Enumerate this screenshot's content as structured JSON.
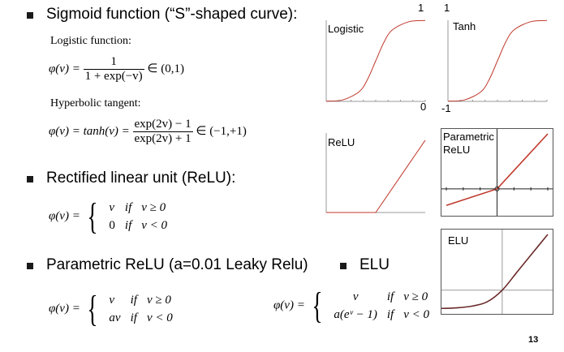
{
  "slide": {
    "page_number": "13",
    "sigmoid": {
      "heading": "Sigmoid function (“S”-shaped curve):",
      "logistic_label": "Logistic function:",
      "tanh_label": "Hyperbolic tangent:",
      "logistic_eq": {
        "lhs": "φ(v) =",
        "num": "1",
        "den": "1 + exp(−v)",
        "range": "∈ (0,1)"
      },
      "tanh_eq": {
        "lhs": "φ(v) = tanh(v) =",
        "num": "exp(2v) − 1",
        "den": "exp(2v) + 1",
        "range": "∈ (−1,+1)"
      }
    },
    "relu": {
      "heading": "Rectified linear unit (ReLU):",
      "eq_lhs": "φ(v) =",
      "cases": [
        {
          "expr": "v",
          "cond_if": "if",
          "cond": "v ≥ 0"
        },
        {
          "expr": "0",
          "cond_if": "if",
          "cond": "v < 0"
        }
      ]
    },
    "prelu": {
      "heading": "Parametric ReLU (a=0.01 Leaky Relu)",
      "eq_lhs": "φ(v) =",
      "cases": [
        {
          "expr": "v",
          "cond_if": "if",
          "cond": "v ≥ 0"
        },
        {
          "expr": "av",
          "cond_if": "if",
          "cond": "v < 0"
        }
      ]
    },
    "elu": {
      "heading": "ELU",
      "eq_lhs": "φ(v) =",
      "cases": [
        {
          "expr": "v",
          "cond_if": "if",
          "cond": "v ≥ 0"
        },
        {
          "expr": "a(eᵛ − 1)",
          "cond_if": "if",
          "cond": "v < 0"
        }
      ]
    }
  },
  "chart_data": [
    {
      "type": "line",
      "title": "Logistic",
      "tick_labels": [
        "1",
        "0"
      ],
      "x": [
        -6,
        -4,
        -2,
        -1,
        0,
        1,
        2,
        4,
        6
      ],
      "series": [
        {
          "values": [
            0.0025,
            0.018,
            0.12,
            0.27,
            0.5,
            0.73,
            0.88,
            0.982,
            0.9975
          ]
        }
      ],
      "ylim": [
        0,
        1
      ]
    },
    {
      "type": "line",
      "title": "Tanh",
      "tick_labels": [
        "1",
        "-1"
      ],
      "x": [
        -3,
        -2,
        -1,
        -0.5,
        0,
        0.5,
        1,
        2,
        3
      ],
      "series": [
        {
          "values": [
            -0.995,
            -0.964,
            -0.762,
            -0.462,
            0,
            0.462,
            0.762,
            0.964,
            0.995
          ]
        }
      ],
      "ylim": [
        -1,
        1
      ]
    },
    {
      "type": "line",
      "title": "ReLU",
      "x": [
        -4,
        0,
        4
      ],
      "series": [
        {
          "values": [
            0,
            0,
            4
          ]
        }
      ]
    },
    {
      "type": "line",
      "title": "Parametric\nReLU",
      "x": [
        -6,
        0,
        6
      ],
      "series": [
        {
          "values": [
            -1.8,
            0,
            6
          ]
        }
      ]
    },
    {
      "type": "line",
      "title": "ELU",
      "x": [
        -4,
        -3,
        -2,
        -1,
        0,
        1,
        2,
        3
      ],
      "series": [
        {
          "values": [
            -0.98,
            -0.95,
            -0.86,
            -0.63,
            0,
            1,
            2,
            3
          ]
        }
      ]
    }
  ],
  "colors": {
    "curve": "#c0392b",
    "curve_dark": "#6b2a2a",
    "axis": "#999999",
    "border": "#555555"
  }
}
